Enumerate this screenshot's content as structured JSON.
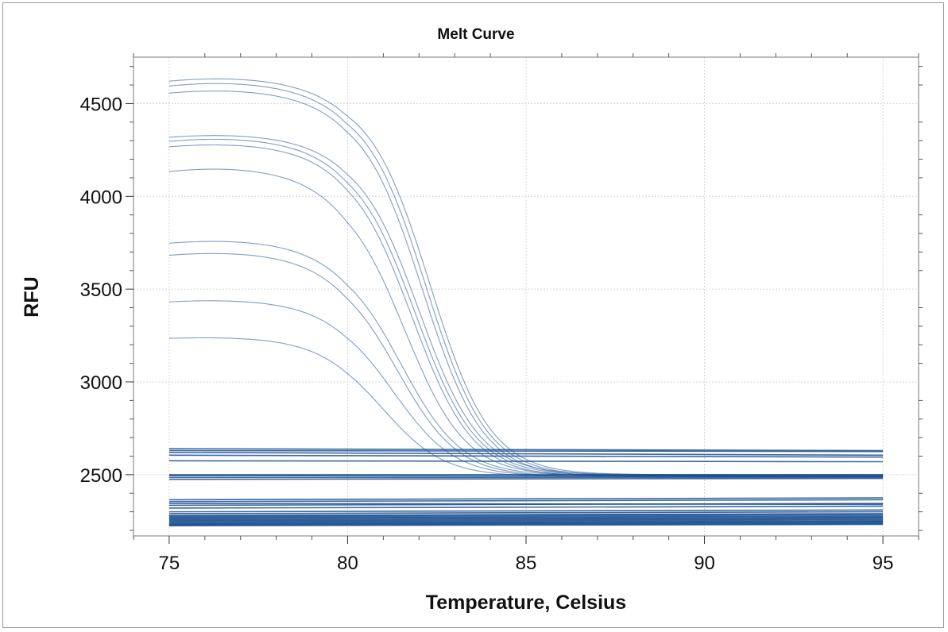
{
  "chart_data": {
    "type": "line",
    "title": "Melt Curve",
    "xlabel": "Temperature, Celsius",
    "ylabel": "RFU",
    "xlim": [
      74,
      96
    ],
    "ylim": [
      2170,
      4750
    ],
    "x_ticks": [
      "75",
      "80",
      "85",
      "90",
      "95"
    ],
    "x_tick_values": [
      75,
      80,
      85,
      90,
      95
    ],
    "y_ticks": [
      "2500",
      "3000",
      "3500",
      "4000",
      "4500"
    ],
    "y_tick_values": [
      2500,
      3000,
      3500,
      4000,
      4500
    ],
    "grid": true,
    "line_color": "#1a4f8f",
    "x_range": [
      75,
      95
    ],
    "melt_series": [
      {
        "start": 4560,
        "peak": 4635,
        "plateau": 2500,
        "tm": 82.3
      },
      {
        "start": 4530,
        "peak": 4610,
        "plateau": 2495,
        "tm": 82.2
      },
      {
        "start": 4500,
        "peak": 4570,
        "plateau": 2490,
        "tm": 82.1
      },
      {
        "start": 4270,
        "peak": 4330,
        "plateau": 2500,
        "tm": 82.0
      },
      {
        "start": 4240,
        "peak": 4310,
        "plateau": 2495,
        "tm": 81.9
      },
      {
        "start": 4215,
        "peak": 4280,
        "plateau": 2490,
        "tm": 81.8
      },
      {
        "start": 4065,
        "peak": 4150,
        "plateau": 2495,
        "tm": 81.6
      },
      {
        "start": 3695,
        "peak": 3760,
        "plateau": 2495,
        "tm": 81.5
      },
      {
        "start": 3630,
        "peak": 3695,
        "plateau": 2490,
        "tm": 81.4
      },
      {
        "start": 3395,
        "peak": 3440,
        "plateau": 2490,
        "tm": 81.3
      },
      {
        "start": 3215,
        "peak": 3240,
        "plateau": 2490,
        "tm": 81.0
      }
    ],
    "flat_series": [
      {
        "start": 2640,
        "end": 2630
      },
      {
        "start": 2630,
        "end": 2625
      },
      {
        "start": 2620,
        "end": 2605
      },
      {
        "start": 2605,
        "end": 2595
      },
      {
        "start": 2575,
        "end": 2570
      },
      {
        "start": 2500,
        "end": 2500
      },
      {
        "start": 2495,
        "end": 2490
      },
      {
        "start": 2485,
        "end": 2485
      },
      {
        "start": 2475,
        "end": 2480
      },
      {
        "start": 2365,
        "end": 2375
      },
      {
        "start": 2355,
        "end": 2365
      },
      {
        "start": 2345,
        "end": 2340
      },
      {
        "start": 2335,
        "end": 2345
      },
      {
        "start": 2320,
        "end": 2330
      },
      {
        "start": 2300,
        "end": 2310
      },
      {
        "start": 2290,
        "end": 2300
      },
      {
        "start": 2280,
        "end": 2290
      },
      {
        "start": 2275,
        "end": 2285
      },
      {
        "start": 2270,
        "end": 2278
      },
      {
        "start": 2265,
        "end": 2272
      },
      {
        "start": 2260,
        "end": 2268
      },
      {
        "start": 2255,
        "end": 2262
      },
      {
        "start": 2250,
        "end": 2258
      },
      {
        "start": 2245,
        "end": 2252
      },
      {
        "start": 2240,
        "end": 2248
      },
      {
        "start": 2235,
        "end": 2245
      },
      {
        "start": 2232,
        "end": 2240
      },
      {
        "start": 2228,
        "end": 2236
      },
      {
        "start": 2225,
        "end": 2232
      }
    ]
  }
}
